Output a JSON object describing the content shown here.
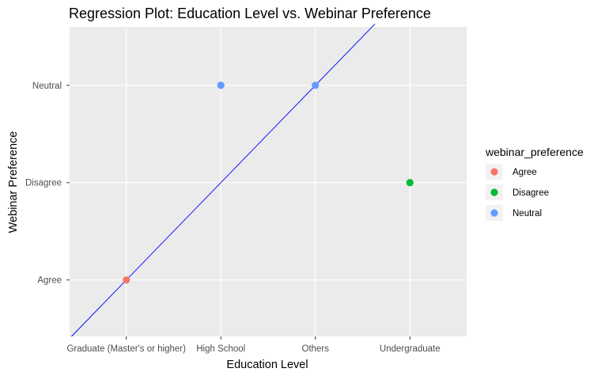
{
  "chart_data": {
    "type": "scatter",
    "title": "Regression Plot: Education Level vs. Webinar Preference",
    "xlabel": "Education Level",
    "ylabel": "Webinar Preference",
    "x_categories": [
      "Graduate (Master's or higher)",
      "High School",
      "Others",
      "Undergraduate"
    ],
    "y_categories": [
      "Agree",
      "Disagree",
      "Neutral"
    ],
    "points": [
      {
        "x": "Graduate (Master's or higher)",
        "y": "Agree",
        "group": "Agree"
      },
      {
        "x": "High School",
        "y": "Neutral",
        "group": "Neutral"
      },
      {
        "x": "Others",
        "y": "Neutral",
        "group": "Neutral"
      },
      {
        "x": "Undergraduate",
        "y": "Disagree",
        "group": "Disagree"
      }
    ],
    "regression_line": {
      "x_start": 0.42,
      "y_start": 0.42,
      "x_end": 3.63,
      "y_end": 3.63,
      "color": "#0000ff"
    },
    "legend": {
      "title": "webinar_preference",
      "position": "right",
      "items": [
        {
          "label": "Agree",
          "color": "#f8766d"
        },
        {
          "label": "Disagree",
          "color": "#00ba38"
        },
        {
          "label": "Neutral",
          "color": "#619cff"
        }
      ]
    },
    "panel_background": "#ebebeb",
    "grid": true
  }
}
